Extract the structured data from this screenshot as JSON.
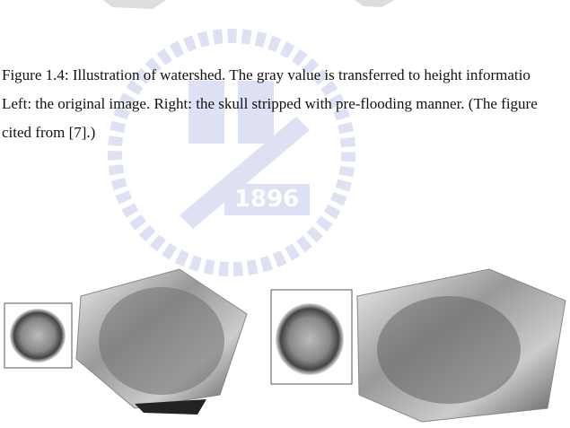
{
  "caption": {
    "lines": [
      "Figure 1.4: Illustration of watershed. The gray value is transferred to height informatio",
      "Left: the original image. Right: the skull stripped with pre-flooding manner. (The figure",
      "cited from [7].)"
    ]
  },
  "watermark": {
    "year": "1896"
  }
}
